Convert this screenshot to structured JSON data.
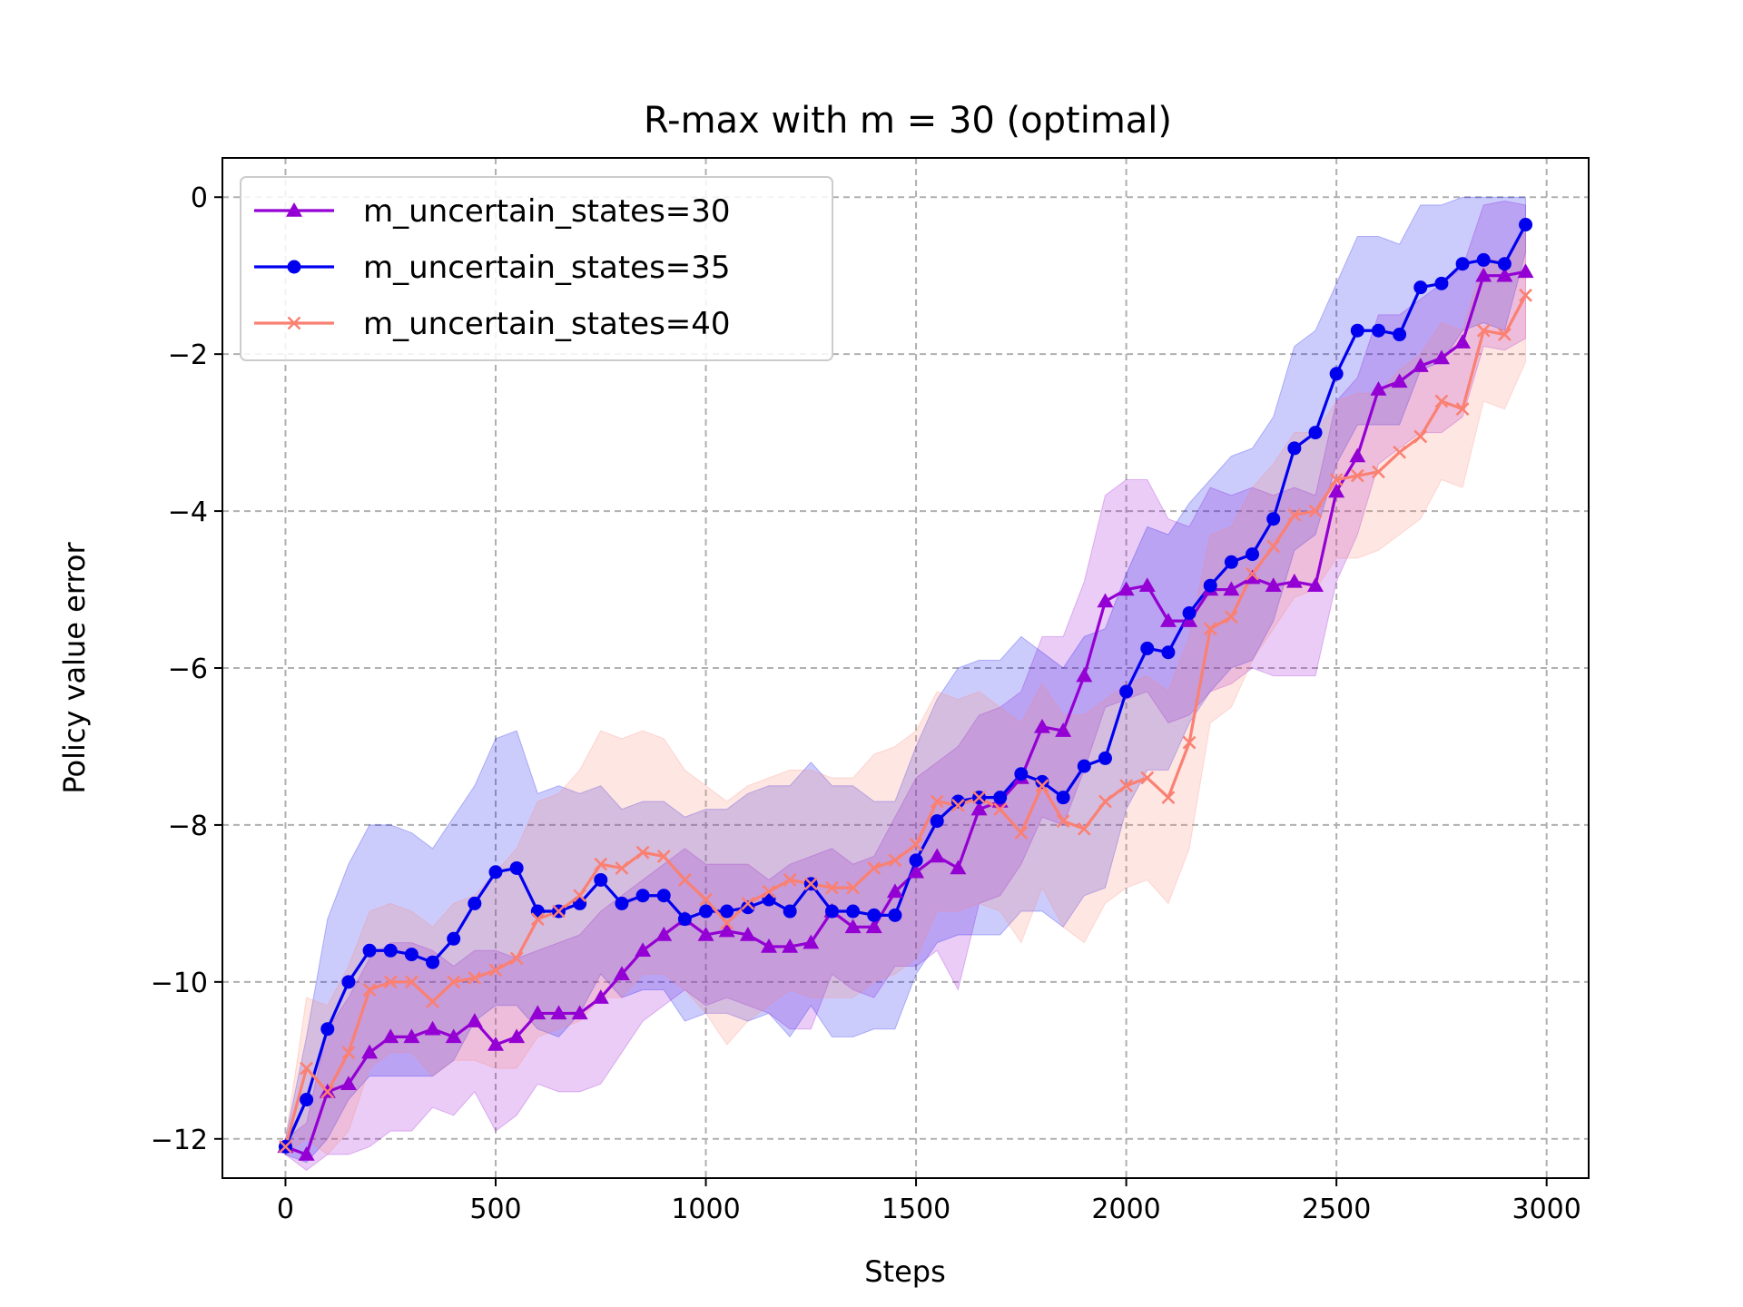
{
  "chart_data": {
    "type": "line",
    "title": "R-max with m = 30 (optimal)",
    "xlabel": "Steps",
    "ylabel": "Policy value error",
    "xlim": [
      -150,
      3100
    ],
    "ylim": [
      -12.5,
      0.5
    ],
    "xticks": [
      0,
      500,
      1000,
      1500,
      2000,
      2500,
      3000
    ],
    "yticks": [
      0,
      -2,
      -4,
      -6,
      -8,
      -10,
      -12
    ],
    "xtick_labels": [
      "0",
      "500",
      "1000",
      "1500",
      "2000",
      "2500",
      "3000"
    ],
    "ytick_labels": [
      "0",
      "−2",
      "−4",
      "−6",
      "−8",
      "−10",
      "−12"
    ],
    "grid": true,
    "legend_position": "top-left",
    "x": [
      0,
      50,
      100,
      150,
      200,
      250,
      300,
      350,
      400,
      450,
      500,
      550,
      600,
      650,
      700,
      750,
      800,
      850,
      900,
      950,
      1000,
      1050,
      1100,
      1150,
      1200,
      1250,
      1300,
      1350,
      1400,
      1450,
      1500,
      1550,
      1600,
      1650,
      1700,
      1750,
      1800,
      1850,
      1900,
      1950,
      2000,
      2050,
      2100,
      2150,
      2200,
      2250,
      2300,
      2350,
      2400,
      2450,
      2500,
      2550,
      2600,
      2650,
      2700,
      2750,
      2800,
      2850,
      2900,
      2950
    ],
    "series": [
      {
        "name": "m_uncertain_states=30",
        "color": "#9400d3",
        "marker": "triangle",
        "values": [
          -12.1,
          -12.2,
          -11.4,
          -11.3,
          -10.9,
          -10.7,
          -10.7,
          -10.6,
          -10.7,
          -10.5,
          -10.8,
          -10.7,
          -10.4,
          -10.4,
          -10.4,
          -10.2,
          -9.9,
          -9.6,
          -9.4,
          -9.2,
          -9.4,
          -9.35,
          -9.4,
          -9.55,
          -9.55,
          -9.5,
          -9.1,
          -9.3,
          -9.3,
          -8.85,
          -8.6,
          -8.4,
          -8.55,
          -7.8,
          -7.7,
          -7.4,
          -6.75,
          -6.8,
          -6.1,
          -5.15,
          -5.0,
          -4.95,
          -5.4,
          -5.4,
          -5.0,
          -5.0,
          -4.85,
          -4.95,
          -4.9,
          -4.95,
          -3.75,
          -3.3,
          -2.45,
          -2.35,
          -2.15,
          -2.05,
          -1.85,
          -1.0,
          -1.0,
          -0.95
        ],
        "upper": [
          -12.0,
          -11.8,
          -10.6,
          -10.2,
          -9.7,
          -9.5,
          -9.5,
          -9.6,
          -9.8,
          -9.6,
          -9.6,
          -9.7,
          -9.6,
          -9.5,
          -9.4,
          -9.1,
          -8.9,
          -8.7,
          -8.5,
          -8.3,
          -8.5,
          -8.5,
          -8.5,
          -8.7,
          -8.5,
          -8.4,
          -8.3,
          -8.5,
          -8.4,
          -7.9,
          -7.4,
          -7.2,
          -7.0,
          -6.6,
          -6.5,
          -6.3,
          -5.6,
          -5.6,
          -4.9,
          -3.8,
          -3.6,
          -3.6,
          -4.1,
          -4.2,
          -3.7,
          -3.8,
          -3.7,
          -3.8,
          -3.7,
          -3.8,
          -2.6,
          -2.3,
          -1.5,
          -1.5,
          -1.3,
          -1.1,
          -0.9,
          -0.1,
          -0.05,
          -0.1
        ],
        "lower": [
          -12.2,
          -12.4,
          -12.2,
          -12.2,
          -12.1,
          -11.9,
          -11.9,
          -11.6,
          -11.7,
          -11.4,
          -11.9,
          -11.7,
          -11.3,
          -11.4,
          -11.4,
          -11.3,
          -10.9,
          -10.5,
          -10.3,
          -10.1,
          -10.3,
          -10.2,
          -10.3,
          -10.4,
          -10.6,
          -10.6,
          -9.9,
          -10.1,
          -10.2,
          -9.8,
          -9.8,
          -9.6,
          -10.1,
          -9.0,
          -8.9,
          -8.5,
          -7.9,
          -8.0,
          -7.3,
          -6.5,
          -6.4,
          -6.3,
          -6.7,
          -6.6,
          -6.3,
          -6.2,
          -6.0,
          -6.1,
          -6.1,
          -6.1,
          -4.9,
          -4.3,
          -3.4,
          -3.2,
          -3.0,
          -3.0,
          -2.8,
          -1.9,
          -1.95,
          -1.8
        ]
      },
      {
        "name": "m_uncertain_states=35",
        "color": "#0000ee",
        "marker": "circle",
        "values": [
          -12.1,
          -11.5,
          -10.6,
          -10.0,
          -9.6,
          -9.6,
          -9.65,
          -9.75,
          -9.45,
          -9.0,
          -8.6,
          -8.55,
          -9.1,
          -9.1,
          -9.0,
          -8.7,
          -9.0,
          -8.9,
          -8.9,
          -9.2,
          -9.1,
          -9.1,
          -9.05,
          -8.95,
          -9.1,
          -8.75,
          -9.1,
          -9.1,
          -9.15,
          -9.15,
          -8.45,
          -7.95,
          -7.7,
          -7.65,
          -7.65,
          -7.35,
          -7.45,
          -7.65,
          -7.25,
          -7.15,
          -6.3,
          -5.75,
          -5.8,
          -5.3,
          -4.95,
          -4.65,
          -4.55,
          -4.1,
          -3.2,
          -3.0,
          -2.25,
          -1.7,
          -1.7,
          -1.75,
          -1.15,
          -1.1,
          -0.85,
          -0.8,
          -0.85,
          -0.35
        ],
        "upper": [
          -12.0,
          -10.7,
          -9.2,
          -8.5,
          -8.0,
          -8.0,
          -8.1,
          -8.3,
          -7.9,
          -7.5,
          -6.9,
          -6.8,
          -7.6,
          -7.5,
          -7.6,
          -7.5,
          -7.8,
          -7.7,
          -7.7,
          -7.9,
          -7.8,
          -7.8,
          -7.6,
          -7.5,
          -7.5,
          -7.2,
          -7.5,
          -7.5,
          -7.7,
          -7.7,
          -7.0,
          -6.4,
          -6.0,
          -5.9,
          -5.9,
          -5.6,
          -5.8,
          -6.0,
          -5.6,
          -5.5,
          -4.8,
          -4.2,
          -4.3,
          -3.9,
          -3.6,
          -3.3,
          -3.2,
          -2.8,
          -1.9,
          -1.7,
          -1.1,
          -0.5,
          -0.5,
          -0.6,
          -0.1,
          -0.1,
          0.0,
          0.0,
          0.0,
          0.0
        ],
        "lower": [
          -12.2,
          -12.3,
          -12.0,
          -11.5,
          -11.2,
          -11.2,
          -11.2,
          -11.2,
          -11.0,
          -10.5,
          -10.3,
          -10.3,
          -10.6,
          -10.7,
          -10.4,
          -9.9,
          -10.2,
          -10.1,
          -10.1,
          -10.5,
          -10.4,
          -10.4,
          -10.5,
          -10.4,
          -10.7,
          -10.3,
          -10.7,
          -10.7,
          -10.6,
          -10.6,
          -9.9,
          -9.5,
          -9.4,
          -9.4,
          -9.4,
          -9.1,
          -9.1,
          -9.3,
          -8.9,
          -8.8,
          -7.8,
          -7.3,
          -7.3,
          -6.7,
          -6.3,
          -6.0,
          -5.9,
          -5.4,
          -4.5,
          -4.3,
          -3.4,
          -2.9,
          -2.9,
          -2.9,
          -2.2,
          -2.1,
          -1.7,
          -1.6,
          -1.7,
          -0.7
        ]
      },
      {
        "name": "m_uncertain_states=40",
        "color": "#fa8072",
        "marker": "x",
        "values": [
          -12.1,
          -11.1,
          -11.4,
          -10.9,
          -10.1,
          -10.0,
          -10.0,
          -10.25,
          -10.0,
          -9.95,
          -9.85,
          -9.7,
          -9.2,
          -9.1,
          -8.9,
          -8.5,
          -8.55,
          -8.35,
          -8.4,
          -8.7,
          -8.95,
          -9.25,
          -9.0,
          -8.85,
          -8.7,
          -8.75,
          -8.8,
          -8.8,
          -8.55,
          -8.45,
          -8.25,
          -7.7,
          -7.75,
          -7.65,
          -7.8,
          -8.1,
          -7.5,
          -7.95,
          -8.05,
          -7.7,
          -7.5,
          -7.4,
          -7.65,
          -6.95,
          -5.5,
          -5.35,
          -4.8,
          -4.45,
          -4.05,
          -4.0,
          -3.6,
          -3.55,
          -3.5,
          -3.25,
          -3.05,
          -2.6,
          -2.7,
          -1.7,
          -1.75,
          -1.25
        ],
        "upper": [
          -12.0,
          -10.2,
          -10.3,
          -9.8,
          -9.1,
          -9.0,
          -9.1,
          -9.3,
          -9.0,
          -8.9,
          -8.6,
          -8.3,
          -7.7,
          -7.6,
          -7.3,
          -6.8,
          -6.9,
          -6.8,
          -6.9,
          -7.3,
          -7.5,
          -7.7,
          -7.5,
          -7.4,
          -7.3,
          -7.3,
          -7.4,
          -7.4,
          -7.1,
          -7.0,
          -6.8,
          -6.3,
          -6.4,
          -6.3,
          -6.5,
          -6.7,
          -6.2,
          -6.6,
          -6.6,
          -6.4,
          -6.2,
          -6.1,
          -6.3,
          -5.6,
          -4.3,
          -4.2,
          -3.7,
          -3.4,
          -3.0,
          -3.0,
          -2.6,
          -2.5,
          -2.5,
          -2.2,
          -2.0,
          -1.6,
          -1.7,
          -0.8,
          -0.8,
          -0.4
        ],
        "lower": [
          -12.2,
          -12.0,
          -12.2,
          -11.9,
          -11.1,
          -10.9,
          -10.9,
          -11.2,
          -11.0,
          -11.0,
          -11.1,
          -11.1,
          -10.7,
          -10.6,
          -10.5,
          -10.2,
          -10.2,
          -9.9,
          -9.9,
          -10.1,
          -10.4,
          -10.8,
          -10.5,
          -10.3,
          -10.1,
          -10.2,
          -10.2,
          -10.2,
          -10.0,
          -9.9,
          -9.7,
          -9.1,
          -9.1,
          -9.0,
          -9.1,
          -9.5,
          -8.8,
          -9.3,
          -9.5,
          -9.0,
          -8.8,
          -8.7,
          -9.0,
          -8.3,
          -6.7,
          -6.5,
          -5.9,
          -5.5,
          -5.1,
          -5.0,
          -4.6,
          -4.6,
          -4.5,
          -4.3,
          -4.1,
          -3.6,
          -3.7,
          -2.6,
          -2.7,
          -2.1
        ]
      }
    ]
  }
}
